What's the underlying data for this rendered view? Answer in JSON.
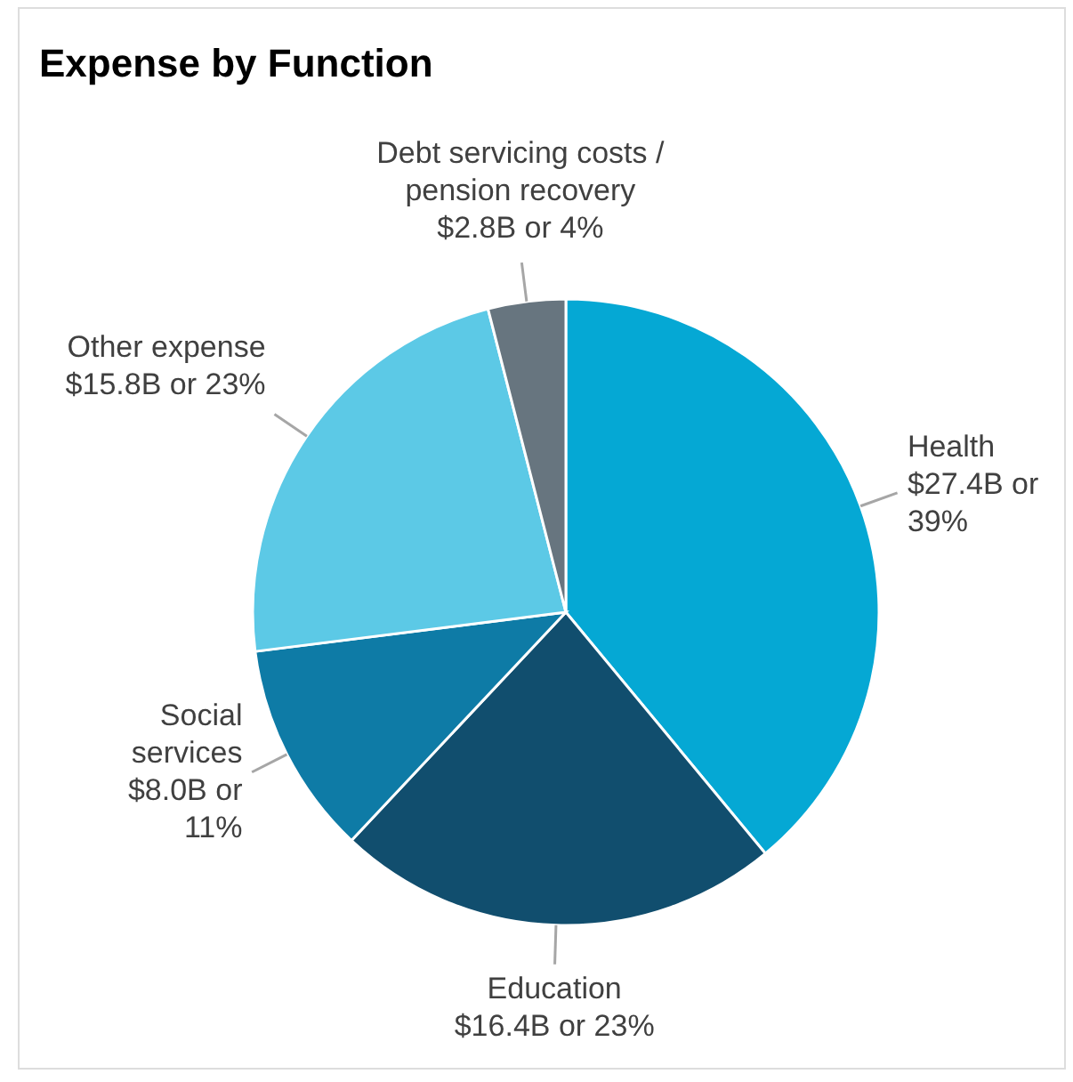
{
  "chart_data": {
    "type": "pie",
    "title": "Expense by Function",
    "categories": [
      "Health",
      "Education",
      "Social services",
      "Other expense",
      "Debt servicing costs / pension recovery"
    ],
    "values": [
      39,
      23,
      11,
      23,
      4
    ],
    "value_labels": [
      "$27.4B or 39%",
      "$16.4B or 23%",
      "$8.0B or 11%",
      "$15.8B or 23%",
      "$2.8B or 4%"
    ],
    "colors": [
      "#05a8d4",
      "#114e6e",
      "#0e7ba6",
      "#5cc9e6",
      "#67757f"
    ]
  }
}
